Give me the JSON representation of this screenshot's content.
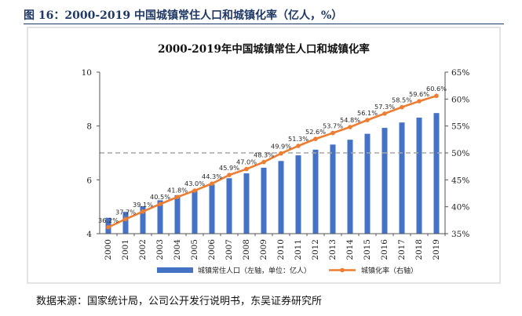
{
  "figure": {
    "caption": "图 16：2000-2019 中国城镇常住人口和城镇化率（亿人，%）",
    "source": "数据来源：国家统计局，公司公开发行说明书，东吴证券研究所"
  },
  "chart_data": {
    "type": "bar",
    "title": "2000-2019年中国城镇常住人口和城镇化率",
    "categories": [
      "2000",
      "2001",
      "2002",
      "2003",
      "2004",
      "2005",
      "2006",
      "2007",
      "2008",
      "2009",
      "2010",
      "2011",
      "2012",
      "2013",
      "2014",
      "2015",
      "2016",
      "2017",
      "2018",
      "2019"
    ],
    "series": [
      {
        "name": "城镇常住人口（左轴，单位：亿人）",
        "type": "bar",
        "axis": "left",
        "color": "#4472c4",
        "values": [
          4.59,
          4.81,
          5.02,
          5.24,
          5.43,
          5.62,
          5.83,
          6.06,
          6.24,
          6.45,
          6.7,
          6.91,
          7.12,
          7.31,
          7.49,
          7.71,
          7.93,
          8.13,
          8.31,
          8.48
        ]
      },
      {
        "name": "城镇化率（右轴）",
        "type": "line",
        "axis": "right",
        "color": "#ed7d31",
        "values": [
          36.2,
          37.7,
          39.1,
          40.5,
          41.8,
          43.0,
          44.3,
          45.9,
          47.0,
          48.3,
          49.9,
          51.3,
          52.6,
          53.7,
          54.8,
          56.1,
          57.3,
          58.5,
          59.6,
          60.6
        ],
        "labels": [
          "36.2%",
          "37.7%",
          "39.1%",
          "40.5%",
          "41.8%",
          "43.0%",
          "44.3%",
          "45.9%",
          "47.0%",
          "48.3%",
          "49.9%",
          "51.3%",
          "52.6%",
          "53.7%",
          "54.8%",
          "56.1%",
          "57.3%",
          "58.5%",
          "59.6%",
          "60.6%"
        ]
      }
    ],
    "left_axis": {
      "ylim": [
        4,
        10
      ],
      "ticks": [
        "4",
        "6",
        "8",
        "10"
      ]
    },
    "right_axis": {
      "ylim": [
        35,
        65
      ],
      "ticks": [
        "35%",
        "40%",
        "45%",
        "50%",
        "55%",
        "60%",
        "65%"
      ]
    },
    "reference_line": {
      "value": 50,
      "axis": "right",
      "style": "dashed"
    },
    "grid": false,
    "legend_position": "bottom"
  }
}
